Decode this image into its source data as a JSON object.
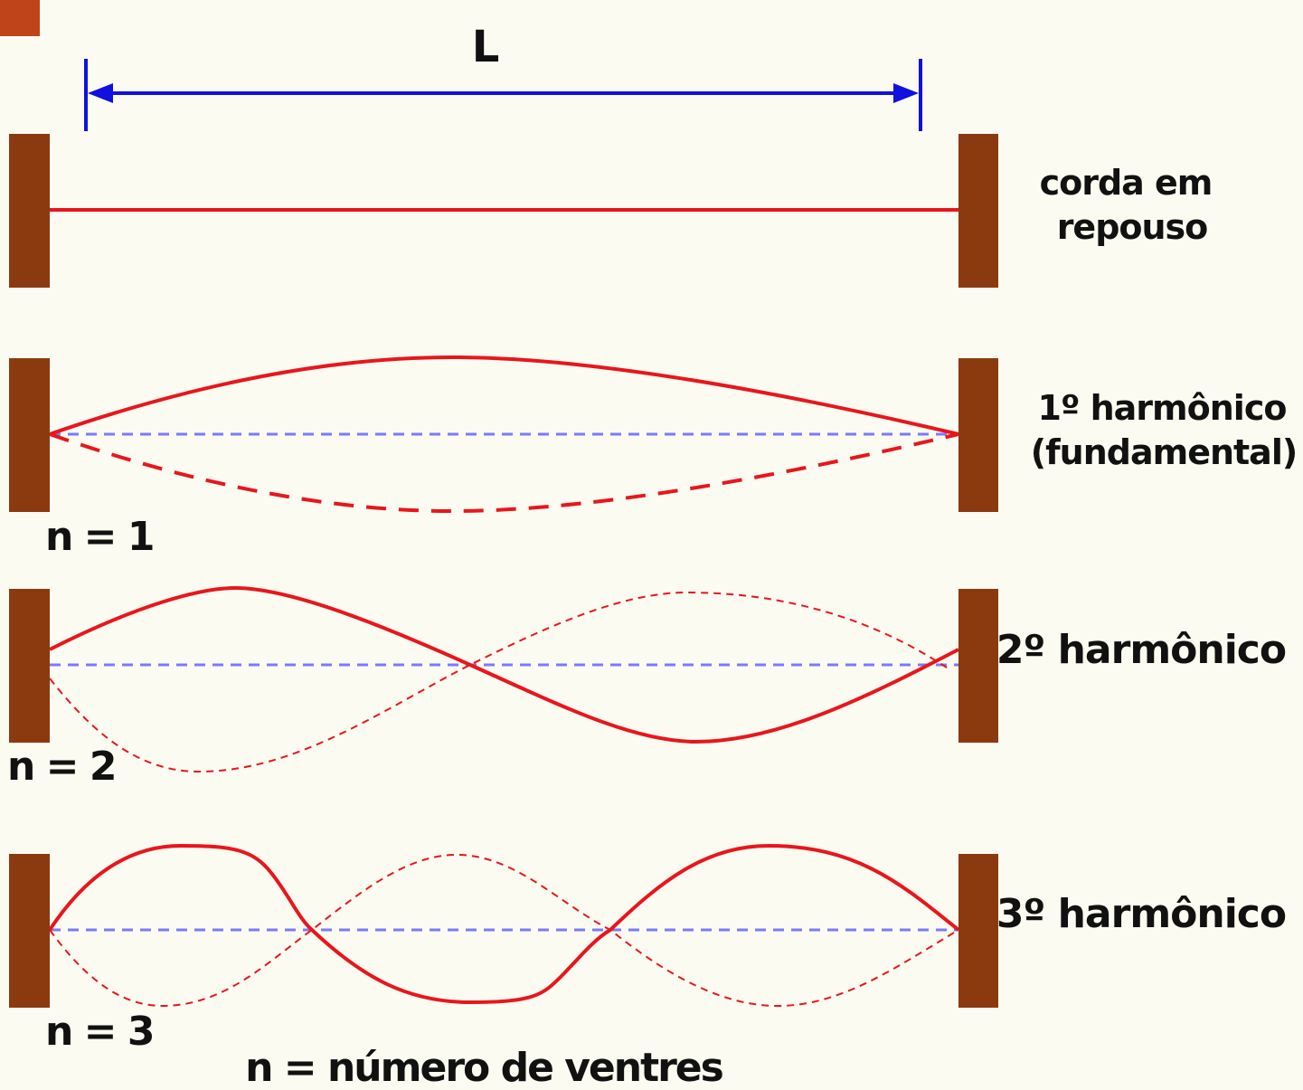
{
  "dimension": {
    "label": "L"
  },
  "rows": [
    {
      "label_lines": [
        "corda em",
        "repouso"
      ]
    },
    {
      "label_lines": [
        "1º harmônico",
        "(fundamental)"
      ],
      "n_label": "n = 1"
    },
    {
      "label_lines": [
        "2º harmônico"
      ],
      "n_label": "n = 2"
    },
    {
      "label_lines": [
        "3º harmônico"
      ],
      "n_label": "n = 3"
    }
  ],
  "footer": "n = número de ventres"
}
